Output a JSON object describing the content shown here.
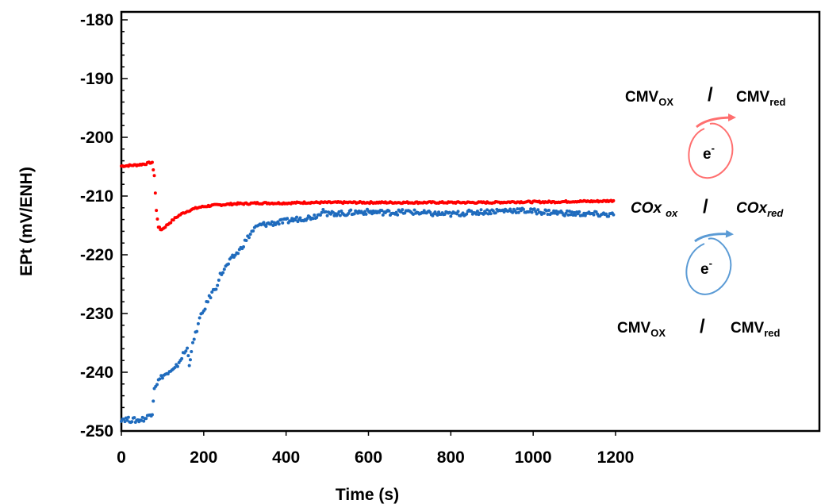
{
  "chart_data": {
    "type": "scatter",
    "title": "",
    "xlabel": "Time (s)",
    "ylabel": "EPt (mV/ENH)",
    "xlim": [
      0,
      1200
    ],
    "ylim": [
      -250,
      -180
    ],
    "x_ticks": [
      0,
      200,
      400,
      600,
      800,
      1000,
      1200
    ],
    "y_ticks": [
      -180,
      -190,
      -200,
      -210,
      -220,
      -230,
      -240,
      -250
    ],
    "grid": false,
    "legend": "none",
    "series": [
      {
        "color": "#ff0000",
        "points": [
          [
            0,
            -204.9
          ],
          [
            20,
            -204.8
          ],
          [
            40,
            -204.7
          ],
          [
            60,
            -204.5
          ],
          [
            70,
            -204.3
          ],
          [
            75,
            -204.4
          ],
          [
            80,
            -206.5
          ],
          [
            85,
            -212.5
          ],
          [
            90,
            -215.2
          ],
          [
            95,
            -215.7
          ],
          [
            100,
            -215.6
          ],
          [
            110,
            -215.0
          ],
          [
            120,
            -214.4
          ],
          [
            130,
            -213.8
          ],
          [
            140,
            -213.3
          ],
          [
            150,
            -212.9
          ],
          [
            160,
            -212.6
          ],
          [
            170,
            -212.3
          ],
          [
            180,
            -212.1
          ],
          [
            190,
            -211.9
          ],
          [
            200,
            -211.8
          ],
          [
            220,
            -211.6
          ],
          [
            240,
            -211.5
          ],
          [
            260,
            -211.4
          ],
          [
            280,
            -211.3
          ],
          [
            300,
            -211.3
          ],
          [
            330,
            -211.2
          ],
          [
            360,
            -211.2
          ],
          [
            400,
            -211.2
          ],
          [
            450,
            -211.1
          ],
          [
            500,
            -211.1
          ],
          [
            550,
            -211.1
          ],
          [
            600,
            -211.1
          ],
          [
            650,
            -211.1
          ],
          [
            700,
            -211.1
          ],
          [
            750,
            -211.1
          ],
          [
            800,
            -211.1
          ],
          [
            850,
            -211.1
          ],
          [
            900,
            -211.1
          ],
          [
            950,
            -211.0
          ],
          [
            1000,
            -211.0
          ],
          [
            1050,
            -211.0
          ],
          [
            1100,
            -210.9
          ],
          [
            1150,
            -210.9
          ],
          [
            1195,
            -210.8
          ]
        ]
      },
      {
        "color": "#1f6bbd",
        "points": [
          [
            0,
            -247.9
          ],
          [
            20,
            -248.1
          ],
          [
            40,
            -248.2
          ],
          [
            60,
            -247.8
          ],
          [
            70,
            -247.2
          ],
          [
            75,
            -246.8
          ],
          [
            80,
            -242.5
          ],
          [
            90,
            -241.5
          ],
          [
            100,
            -240.6
          ],
          [
            110,
            -240.3
          ],
          [
            120,
            -240.0
          ],
          [
            130,
            -239.5
          ],
          [
            140,
            -238.3
          ],
          [
            150,
            -237.0
          ],
          [
            160,
            -236.0
          ],
          [
            165,
            -238.6
          ],
          [
            170,
            -236.3
          ],
          [
            180,
            -233.5
          ],
          [
            190,
            -231.0
          ],
          [
            200,
            -229.5
          ],
          [
            210,
            -227.8
          ],
          [
            220,
            -226.5
          ],
          [
            230,
            -225.5
          ],
          [
            240,
            -223.5
          ],
          [
            250,
            -222.5
          ],
          [
            260,
            -221.5
          ],
          [
            270,
            -220.5
          ],
          [
            280,
            -219.8
          ],
          [
            290,
            -219.0
          ],
          [
            300,
            -217.8
          ],
          [
            310,
            -216.8
          ],
          [
            320,
            -215.8
          ],
          [
            330,
            -215.2
          ],
          [
            340,
            -214.9
          ],
          [
            360,
            -214.7
          ],
          [
            380,
            -214.5
          ],
          [
            400,
            -214.3
          ],
          [
            420,
            -214.0
          ],
          [
            440,
            -213.8
          ],
          [
            460,
            -213.6
          ],
          [
            480,
            -213.2
          ],
          [
            490,
            -212.0
          ],
          [
            500,
            -213.2
          ],
          [
            520,
            -212.9
          ],
          [
            540,
            -213.0
          ],
          [
            560,
            -212.8
          ],
          [
            580,
            -212.7
          ],
          [
            600,
            -212.7
          ],
          [
            650,
            -212.8
          ],
          [
            700,
            -212.7
          ],
          [
            750,
            -213.0
          ],
          [
            800,
            -213.1
          ],
          [
            850,
            -212.8
          ],
          [
            900,
            -212.6
          ],
          [
            950,
            -212.4
          ],
          [
            1000,
            -212.6
          ],
          [
            1050,
            -212.8
          ],
          [
            1100,
            -213.0
          ],
          [
            1150,
            -213.1
          ],
          [
            1195,
            -213.2
          ]
        ]
      }
    ],
    "annotations": {
      "top_pair": {
        "left_main": "CMV",
        "left_sub": "OX",
        "slash": "/",
        "right_main": "CMV",
        "right_sub": "red"
      },
      "middle_pair": {
        "left_main": "COx",
        "left_sub": "ox",
        "slash": "/",
        "right_main": "COx",
        "right_sub": "red"
      },
      "bottom_pair": {
        "left_main": "CMV",
        "left_sub": "OX",
        "slash": "/",
        "right_main": "CMV",
        "right_sub": "red"
      },
      "electron_top": {
        "main": "e",
        "sup": "-",
        "color": "#ff6f6f"
      },
      "electron_bottom": {
        "main": "e",
        "sup": "-",
        "color": "#5b9bd5"
      }
    }
  }
}
